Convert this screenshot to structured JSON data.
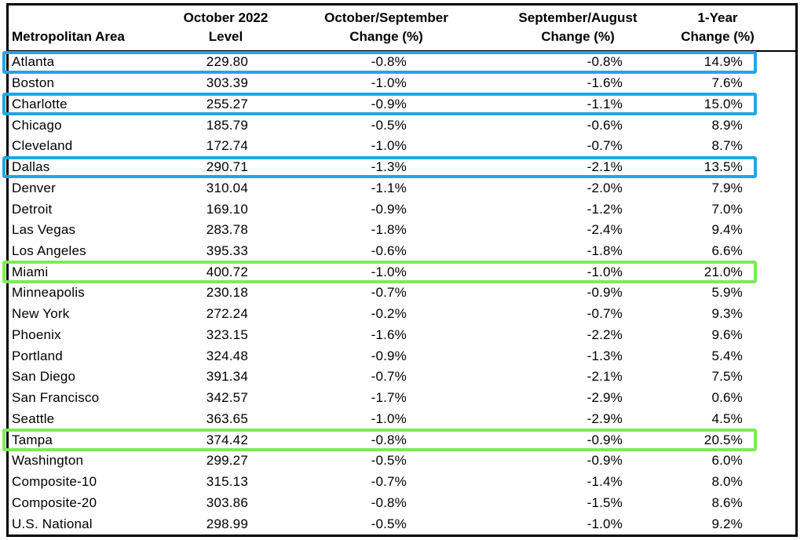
{
  "table": {
    "columns": [
      {
        "id": "area",
        "line1": "",
        "line2": "Metropolitan Area"
      },
      {
        "id": "level",
        "line1": "October 2022",
        "line2": "Level"
      },
      {
        "id": "mom",
        "line1": "October/September",
        "line2": "Change (%)"
      },
      {
        "id": "prev",
        "line1": "September/August",
        "line2": "Change (%)"
      },
      {
        "id": "yoy",
        "line1": "1-Year",
        "line2": "Change (%)"
      }
    ],
    "rows": [
      {
        "area": "Atlanta",
        "level": "229.80",
        "mom": "-0.8%",
        "prev": "-0.8%",
        "yoy": "14.9%",
        "highlight": "blue"
      },
      {
        "area": "Boston",
        "level": "303.39",
        "mom": "-1.0%",
        "prev": "-1.6%",
        "yoy": "7.6%",
        "highlight": null
      },
      {
        "area": "Charlotte",
        "level": "255.27",
        "mom": "-0.9%",
        "prev": "-1.1%",
        "yoy": "15.0%",
        "highlight": "blue"
      },
      {
        "area": "Chicago",
        "level": "185.79",
        "mom": "-0.5%",
        "prev": "-0.6%",
        "yoy": "8.9%",
        "highlight": null
      },
      {
        "area": "Cleveland",
        "level": "172.74",
        "mom": "-1.0%",
        "prev": "-0.7%",
        "yoy": "8.7%",
        "highlight": null
      },
      {
        "area": "Dallas",
        "level": "290.71",
        "mom": "-1.3%",
        "prev": "-2.1%",
        "yoy": "13.5%",
        "highlight": "blue"
      },
      {
        "area": "Denver",
        "level": "310.04",
        "mom": "-1.1%",
        "prev": "-2.0%",
        "yoy": "7.9%",
        "highlight": null
      },
      {
        "area": "Detroit",
        "level": "169.10",
        "mom": "-0.9%",
        "prev": "-1.2%",
        "yoy": "7.0%",
        "highlight": null
      },
      {
        "area": "Las Vegas",
        "level": "283.78",
        "mom": "-1.8%",
        "prev": "-2.4%",
        "yoy": "9.4%",
        "highlight": null
      },
      {
        "area": "Los Angeles",
        "level": "395.33",
        "mom": "-0.6%",
        "prev": "-1.8%",
        "yoy": "6.6%",
        "highlight": null
      },
      {
        "area": "Miami",
        "level": "400.72",
        "mom": "-1.0%",
        "prev": "-1.0%",
        "yoy": "21.0%",
        "highlight": "green"
      },
      {
        "area": "Minneapolis",
        "level": "230.18",
        "mom": "-0.7%",
        "prev": "-0.9%",
        "yoy": "5.9%",
        "highlight": null
      },
      {
        "area": "New York",
        "level": "272.24",
        "mom": "-0.2%",
        "prev": "-0.7%",
        "yoy": "9.3%",
        "highlight": null
      },
      {
        "area": "Phoenix",
        "level": "323.15",
        "mom": "-1.6%",
        "prev": "-2.2%",
        "yoy": "9.6%",
        "highlight": null
      },
      {
        "area": "Portland",
        "level": "324.48",
        "mom": "-0.9%",
        "prev": "-1.3%",
        "yoy": "5.4%",
        "highlight": null
      },
      {
        "area": "San Diego",
        "level": "391.34",
        "mom": "-0.7%",
        "prev": "-2.1%",
        "yoy": "7.5%",
        "highlight": null
      },
      {
        "area": "San Francisco",
        "level": "342.57",
        "mom": "-1.7%",
        "prev": "-2.9%",
        "yoy": "0.6%",
        "highlight": null
      },
      {
        "area": "Seattle",
        "level": "363.65",
        "mom": "-1.0%",
        "prev": "-2.9%",
        "yoy": "4.5%",
        "highlight": null
      },
      {
        "area": "Tampa",
        "level": "374.42",
        "mom": "-0.8%",
        "prev": "-0.9%",
        "yoy": "20.5%",
        "highlight": "green"
      },
      {
        "area": "Washington",
        "level": "299.27",
        "mom": "-0.5%",
        "prev": "-0.9%",
        "yoy": "6.0%",
        "highlight": null
      },
      {
        "area": "Composite-10",
        "level": "315.13",
        "mom": "-0.7%",
        "prev": "-1.4%",
        "yoy": "8.0%",
        "highlight": null
      },
      {
        "area": "Composite-20",
        "level": "303.86",
        "mom": "-0.8%",
        "prev": "-1.5%",
        "yoy": "8.6%",
        "highlight": null
      },
      {
        "area": "U.S. National",
        "level": "298.99",
        "mom": "-0.5%",
        "prev": "-1.0%",
        "yoy": "9.2%",
        "highlight": null
      }
    ]
  },
  "colors": {
    "highlight_blue": "#1FA7E4",
    "highlight_green": "#7CEC51",
    "frame_border": "#000000",
    "text": "#000000"
  }
}
